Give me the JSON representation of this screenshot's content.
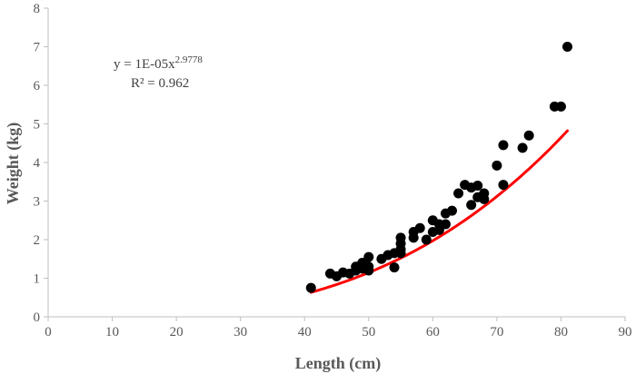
{
  "chart_data": {
    "type": "scatter",
    "title": "",
    "xlabel": "Length (cm)",
    "ylabel": "Weight (kg)",
    "xlim": [
      0,
      90
    ],
    "ylim": [
      0,
      8
    ],
    "xticks": [
      "0",
      "10",
      "20",
      "30",
      "40",
      "50",
      "60",
      "70",
      "80",
      "90"
    ],
    "yticks": [
      "0",
      "1",
      "2",
      "3",
      "4",
      "5",
      "6",
      "7",
      "8"
    ],
    "grid": false,
    "legend": "none",
    "equation": {
      "base": "y = 1E-05x",
      "exponent": "2.9778",
      "r2": "R² = 0.962"
    },
    "trendline": {
      "type": "power",
      "a": 1e-05,
      "b": 2.9778,
      "x_range": [
        41,
        81
      ],
      "color": "#ff0000"
    },
    "marker_color": "#000000",
    "series": [
      {
        "points": [
          [
            41,
            0.75
          ],
          [
            44,
            1.12
          ],
          [
            45,
            1.05
          ],
          [
            46,
            1.15
          ],
          [
            47,
            1.12
          ],
          [
            48,
            1.2
          ],
          [
            48,
            1.3
          ],
          [
            49,
            1.4
          ],
          [
            49,
            1.25
          ],
          [
            50,
            1.55
          ],
          [
            50,
            1.3
          ],
          [
            50,
            1.2
          ],
          [
            52,
            1.5
          ],
          [
            53,
            1.6
          ],
          [
            54,
            1.65
          ],
          [
            54,
            1.28
          ],
          [
            55,
            1.75
          ],
          [
            55,
            1.65
          ],
          [
            55,
            2.05
          ],
          [
            55,
            1.9
          ],
          [
            57,
            2.2
          ],
          [
            57,
            2.05
          ],
          [
            58,
            2.3
          ],
          [
            59,
            2.0
          ],
          [
            60,
            2.5
          ],
          [
            60,
            2.2
          ],
          [
            61,
            2.25
          ],
          [
            61,
            2.4
          ],
          [
            62,
            2.68
          ],
          [
            62,
            2.4
          ],
          [
            63,
            2.75
          ],
          [
            64,
            3.2
          ],
          [
            65,
            3.42
          ],
          [
            66,
            3.35
          ],
          [
            66,
            2.9
          ],
          [
            67,
            3.4
          ],
          [
            67,
            3.1
          ],
          [
            68,
            3.05
          ],
          [
            68,
            3.2
          ],
          [
            70,
            3.92
          ],
          [
            71,
            4.45
          ],
          [
            71,
            3.42
          ],
          [
            74,
            4.38
          ],
          [
            75,
            4.7
          ],
          [
            79,
            5.45
          ],
          [
            80,
            5.45
          ],
          [
            81,
            7.0
          ]
        ]
      }
    ]
  }
}
